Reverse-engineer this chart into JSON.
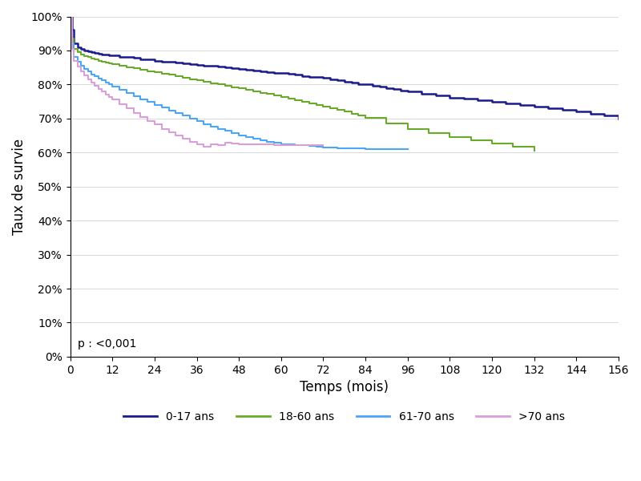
{
  "title": "",
  "xlabel": "Temps (mois)",
  "ylabel": "Taux de survie",
  "xlim": [
    0,
    156
  ],
  "ylim": [
    0,
    1.0
  ],
  "xticks": [
    0,
    12,
    24,
    36,
    48,
    60,
    72,
    84,
    96,
    108,
    120,
    132,
    144,
    156
  ],
  "yticks": [
    0.0,
    0.1,
    0.2,
    0.3,
    0.4,
    0.5,
    0.6,
    0.7,
    0.8,
    0.9,
    1.0
  ],
  "ytick_labels": [
    "0%",
    "10%",
    "20%",
    "30%",
    "40%",
    "50%",
    "60%",
    "70%",
    "80%",
    "90%",
    "100%"
  ],
  "annotation": "p : <0,001",
  "series": [
    {
      "label": "0-17 ans",
      "color": "#1a1a8c",
      "linewidth": 1.8,
      "x": [
        0,
        0.5,
        1,
        2,
        3,
        4,
        5,
        6,
        7,
        8,
        9,
        10,
        11,
        12,
        14,
        16,
        18,
        20,
        22,
        24,
        26,
        28,
        30,
        32,
        34,
        36,
        38,
        40,
        42,
        44,
        46,
        48,
        50,
        52,
        54,
        56,
        58,
        60,
        62,
        64,
        66,
        68,
        70,
        72,
        74,
        76,
        78,
        80,
        82,
        84,
        86,
        88,
        90,
        92,
        94,
        96,
        100,
        104,
        108,
        112,
        116,
        120,
        124,
        128,
        132,
        136,
        140,
        144,
        148,
        152,
        156
      ],
      "y": [
        1.0,
        0.96,
        0.92,
        0.91,
        0.905,
        0.9,
        0.898,
        0.895,
        0.892,
        0.89,
        0.888,
        0.887,
        0.886,
        0.885,
        0.882,
        0.88,
        0.878,
        0.875,
        0.873,
        0.87,
        0.868,
        0.866,
        0.864,
        0.862,
        0.86,
        0.858,
        0.856,
        0.854,
        0.852,
        0.85,
        0.848,
        0.845,
        0.843,
        0.841,
        0.839,
        0.837,
        0.835,
        0.833,
        0.831,
        0.829,
        0.825,
        0.823,
        0.821,
        0.819,
        0.815,
        0.812,
        0.808,
        0.805,
        0.802,
        0.8,
        0.797,
        0.793,
        0.79,
        0.786,
        0.782,
        0.779,
        0.773,
        0.767,
        0.762,
        0.758,
        0.754,
        0.75,
        0.745,
        0.74,
        0.735,
        0.73,
        0.725,
        0.72,
        0.714,
        0.708,
        0.7
      ]
    },
    {
      "label": "18-60 ans",
      "color": "#6aaa2a",
      "linewidth": 1.5,
      "x": [
        0,
        0.5,
        1,
        2,
        3,
        4,
        5,
        6,
        7,
        8,
        9,
        10,
        11,
        12,
        14,
        16,
        18,
        20,
        22,
        24,
        26,
        28,
        30,
        32,
        34,
        36,
        38,
        40,
        42,
        44,
        46,
        48,
        50,
        52,
        54,
        56,
        58,
        60,
        62,
        64,
        66,
        68,
        70,
        72,
        74,
        76,
        78,
        80,
        82,
        84,
        90,
        96,
        102,
        108,
        114,
        120,
        126,
        132
      ],
      "y": [
        1.0,
        0.935,
        0.905,
        0.896,
        0.889,
        0.884,
        0.88,
        0.876,
        0.873,
        0.87,
        0.867,
        0.864,
        0.862,
        0.859,
        0.855,
        0.851,
        0.847,
        0.843,
        0.839,
        0.836,
        0.832,
        0.828,
        0.824,
        0.82,
        0.816,
        0.812,
        0.808,
        0.804,
        0.8,
        0.796,
        0.792,
        0.788,
        0.784,
        0.78,
        0.776,
        0.772,
        0.768,
        0.764,
        0.759,
        0.754,
        0.749,
        0.744,
        0.74,
        0.735,
        0.73,
        0.725,
        0.72,
        0.714,
        0.708,
        0.702,
        0.685,
        0.67,
        0.658,
        0.646,
        0.636,
        0.626,
        0.616,
        0.606
      ]
    },
    {
      "label": "61-70 ans",
      "color": "#4da6f5",
      "linewidth": 1.5,
      "x": [
        0,
        0.5,
        1,
        2,
        3,
        4,
        5,
        6,
        7,
        8,
        9,
        10,
        11,
        12,
        14,
        16,
        18,
        20,
        22,
        24,
        26,
        28,
        30,
        32,
        34,
        36,
        38,
        40,
        42,
        44,
        46,
        48,
        50,
        52,
        54,
        56,
        58,
        60,
        62,
        64,
        66,
        68,
        70,
        72,
        76,
        80,
        84,
        88,
        92,
        96
      ],
      "y": [
        1.0,
        0.92,
        0.882,
        0.868,
        0.856,
        0.846,
        0.838,
        0.83,
        0.824,
        0.818,
        0.812,
        0.806,
        0.8,
        0.794,
        0.784,
        0.775,
        0.766,
        0.757,
        0.748,
        0.74,
        0.732,
        0.724,
        0.716,
        0.708,
        0.7,
        0.692,
        0.684,
        0.677,
        0.67,
        0.664,
        0.657,
        0.65,
        0.645,
        0.64,
        0.635,
        0.631,
        0.628,
        0.625,
        0.624,
        0.622,
        0.621,
        0.619,
        0.617,
        0.615,
        0.613,
        0.612,
        0.611,
        0.61,
        0.61,
        0.609
      ]
    },
    {
      "label": ">70 ans",
      "color": "#d8a0d8",
      "linewidth": 1.5,
      "x": [
        0,
        0.5,
        1,
        2,
        3,
        4,
        5,
        6,
        7,
        8,
        9,
        10,
        11,
        12,
        14,
        16,
        18,
        20,
        22,
        24,
        26,
        28,
        30,
        32,
        34,
        36,
        38,
        40,
        42,
        44,
        46,
        48,
        50,
        52,
        54,
        56,
        58,
        60,
        62,
        64,
        66,
        68,
        70,
        72
      ],
      "y": [
        1.0,
        0.905,
        0.87,
        0.852,
        0.838,
        0.826,
        0.815,
        0.805,
        0.796,
        0.787,
        0.779,
        0.771,
        0.764,
        0.757,
        0.743,
        0.73,
        0.717,
        0.705,
        0.693,
        0.682,
        0.67,
        0.66,
        0.65,
        0.64,
        0.632,
        0.624,
        0.618,
        0.624,
        0.622,
        0.63,
        0.626,
        0.625,
        0.624,
        0.625,
        0.623,
        0.624,
        0.621,
        0.622,
        0.621,
        0.621,
        0.622,
        0.621,
        0.621,
        0.621
      ]
    }
  ],
  "legend_labels": [
    "0-17 ans",
    "18-60 ans",
    "61-70 ans",
    ">70 ans"
  ],
  "legend_colors": [
    "#1a1a8c",
    "#6aaa2a",
    "#4da6f5",
    "#d8a0d8"
  ],
  "background_color": "#ffffff"
}
